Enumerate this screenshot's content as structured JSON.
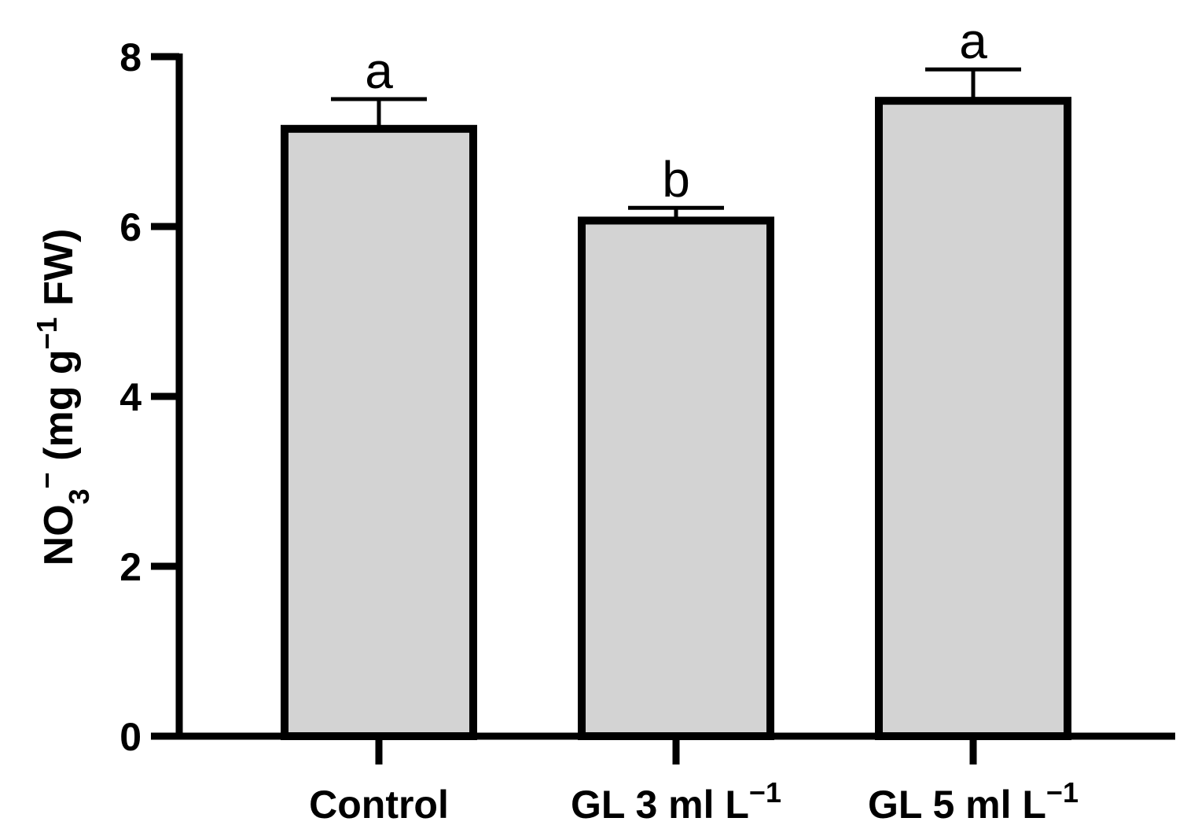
{
  "chart_data": {
    "type": "bar",
    "categories": [
      {
        "base": "Control",
        "sup": ""
      },
      {
        "base": "GL 3 ml L",
        "sup": "−1"
      },
      {
        "base": "GL 5 ml L",
        "sup": "−1"
      }
    ],
    "values": [
      7.15,
      6.07,
      7.48
    ],
    "errors": [
      0.35,
      0.15,
      0.37
    ],
    "significance": [
      "a",
      "b",
      "a"
    ],
    "ylabel": {
      "part1": "NO",
      "sub": "3",
      "sup1": "−",
      "part2": " (mg g",
      "sup2": "−1",
      "part3": " FW)"
    },
    "yticks": [
      0,
      2,
      4,
      6,
      8
    ],
    "ylim": [
      0,
      8
    ],
    "bar_color": "#d3d3d3",
    "edge_color": "#000000"
  }
}
